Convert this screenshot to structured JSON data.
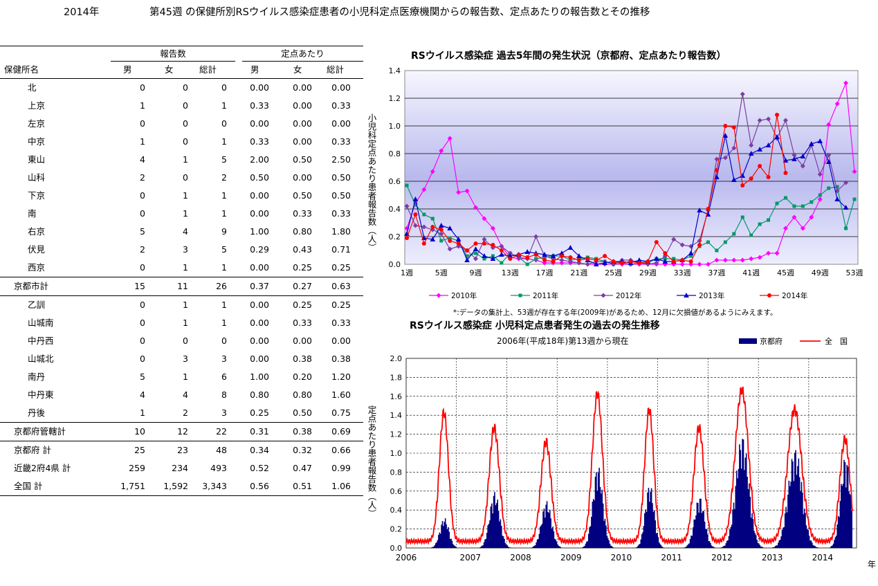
{
  "header": {
    "year": "2014年",
    "title": "第45週 の保健所別RSウイルス感染症患者の小児科定点医療機関からの報告数、定点あたりの報告数とその推移"
  },
  "table": {
    "group_report": "報告数",
    "group_per": "定点あたり",
    "col_name": "保健所名",
    "col_male": "男",
    "col_female": "女",
    "col_total": "総計",
    "rows": [
      {
        "name": "北",
        "m": "0",
        "f": "0",
        "t": "0",
        "pm": "0.00",
        "pf": "0.00",
        "pt": "0.00",
        "tot": false,
        "sep": false
      },
      {
        "name": "上京",
        "m": "1",
        "f": "0",
        "t": "1",
        "pm": "0.33",
        "pf": "0.00",
        "pt": "0.33",
        "tot": false,
        "sep": false
      },
      {
        "name": "左京",
        "m": "0",
        "f": "0",
        "t": "0",
        "pm": "0.00",
        "pf": "0.00",
        "pt": "0.00",
        "tot": false,
        "sep": false
      },
      {
        "name": "中京",
        "m": "1",
        "f": "0",
        "t": "1",
        "pm": "0.33",
        "pf": "0.00",
        "pt": "0.33",
        "tot": false,
        "sep": false
      },
      {
        "name": "東山",
        "m": "4",
        "f": "1",
        "t": "5",
        "pm": "2.00",
        "pf": "0.50",
        "pt": "2.50",
        "tot": false,
        "sep": false
      },
      {
        "name": "山科",
        "m": "2",
        "f": "0",
        "t": "2",
        "pm": "0.50",
        "pf": "0.00",
        "pt": "0.50",
        "tot": false,
        "sep": false
      },
      {
        "name": "下京",
        "m": "0",
        "f": "1",
        "t": "1",
        "pm": "0.00",
        "pf": "0.50",
        "pt": "0.50",
        "tot": false,
        "sep": false
      },
      {
        "name": "南",
        "m": "0",
        "f": "1",
        "t": "1",
        "pm": "0.00",
        "pf": "0.33",
        "pt": "0.33",
        "tot": false,
        "sep": false
      },
      {
        "name": "右京",
        "m": "5",
        "f": "4",
        "t": "9",
        "pm": "1.00",
        "pf": "0.80",
        "pt": "1.80",
        "tot": false,
        "sep": false
      },
      {
        "name": "伏見",
        "m": "2",
        "f": "3",
        "t": "5",
        "pm": "0.29",
        "pf": "0.43",
        "pt": "0.71",
        "tot": false,
        "sep": false
      },
      {
        "name": "西京",
        "m": "0",
        "f": "1",
        "t": "1",
        "pm": "0.00",
        "pf": "0.25",
        "pt": "0.25",
        "tot": false,
        "sep": true
      },
      {
        "name": "京都市計",
        "m": "15",
        "f": "11",
        "t": "26",
        "pm": "0.37",
        "pf": "0.27",
        "pt": "0.63",
        "tot": true,
        "sep": true
      },
      {
        "name": "乙訓",
        "m": "0",
        "f": "1",
        "t": "1",
        "pm": "0.00",
        "pf": "0.25",
        "pt": "0.25",
        "tot": false,
        "sep": false
      },
      {
        "name": "山城南",
        "m": "0",
        "f": "1",
        "t": "1",
        "pm": "0.00",
        "pf": "0.33",
        "pt": "0.33",
        "tot": false,
        "sep": false
      },
      {
        "name": "中丹西",
        "m": "0",
        "f": "0",
        "t": "0",
        "pm": "0.00",
        "pf": "0.00",
        "pt": "0.00",
        "tot": false,
        "sep": false
      },
      {
        "name": "山城北",
        "m": "0",
        "f": "3",
        "t": "3",
        "pm": "0.00",
        "pf": "0.38",
        "pt": "0.38",
        "tot": false,
        "sep": false
      },
      {
        "name": "南丹",
        "m": "5",
        "f": "1",
        "t": "6",
        "pm": "1.00",
        "pf": "0.20",
        "pt": "1.20",
        "tot": false,
        "sep": false
      },
      {
        "name": "中丹東",
        "m": "4",
        "f": "4",
        "t": "8",
        "pm": "0.80",
        "pf": "0.80",
        "pt": "1.60",
        "tot": false,
        "sep": false
      },
      {
        "name": "丹後",
        "m": "1",
        "f": "2",
        "t": "3",
        "pm": "0.25",
        "pf": "0.50",
        "pt": "0.75",
        "tot": false,
        "sep": true
      },
      {
        "name": "京都府管轄計",
        "m": "10",
        "f": "12",
        "t": "22",
        "pm": "0.31",
        "pf": "0.38",
        "pt": "0.69",
        "tot": true,
        "sep": true
      },
      {
        "name": "京都府 計",
        "m": "25",
        "f": "23",
        "t": "48",
        "pm": "0.34",
        "pf": "0.32",
        "pt": "0.66",
        "tot": true,
        "sep": false
      },
      {
        "name": "近畿2府4県 計",
        "m": "259",
        "f": "234",
        "t": "493",
        "pm": "0.52",
        "pf": "0.47",
        "pt": "0.99",
        "tot": true,
        "sep": false
      },
      {
        "name": "全国 計",
        "m": "1,751",
        "f": "1,592",
        "t": "3,343",
        "pm": "0.56",
        "pf": "0.51",
        "pt": "1.06",
        "tot": true,
        "sep": true
      }
    ]
  },
  "chart_data": [
    {
      "type": "line",
      "title": "RSウイルス感染症 過去5年間の発生状況（京都府、定点あたり報告数）",
      "ylabel": "小児科定点あたり患者報告数（人）",
      "ylim": [
        0,
        1.4
      ],
      "yticks": [
        "0.0",
        "0.2",
        "0.4",
        "0.6",
        "0.8",
        "1.0",
        "1.2",
        "1.4"
      ],
      "xticks": [
        "1週",
        "5週",
        "9週",
        "13週",
        "17週",
        "21週",
        "25週",
        "29週",
        "33週",
        "37週",
        "41週",
        "45週",
        "49週",
        "53週"
      ],
      "note": "*:データの集計上、53週が存在する年(2009年)があるため、12月に欠損値があるようにみえます。",
      "series": [
        {
          "name": "2010年",
          "color": "#ff00ff",
          "marker": "diamond",
          "values": [
            0.26,
            0.44,
            0.54,
            0.67,
            0.82,
            0.91,
            0.52,
            0.53,
            0.41,
            0.33,
            0.26,
            0.13,
            0.05,
            0.04,
            0.04,
            0.03,
            0.01,
            0.01,
            0.01,
            0.01,
            0.01,
            0.0,
            0.0,
            0.0,
            0.0,
            0.0,
            0.0,
            0.0,
            0.0,
            0.0,
            0.0,
            0.0,
            0.0,
            0.0,
            0.0,
            0.0,
            0.03,
            0.03,
            0.03,
            0.03,
            0.04,
            0.05,
            0.08,
            0.08,
            0.26,
            0.34,
            0.26,
            0.34,
            0.47,
            1.01,
            1.16,
            1.31,
            0.67
          ]
        },
        {
          "name": "2011年",
          "color": "#009966",
          "marker": "square",
          "values": [
            0.57,
            0.43,
            0.36,
            0.33,
            0.17,
            0.19,
            0.17,
            0.06,
            0.08,
            0.04,
            0.06,
            0.01,
            0.08,
            0.05,
            0.0,
            0.04,
            0.05,
            0.06,
            0.06,
            0.03,
            0.04,
            0.05,
            0.04,
            0.02,
            0.0,
            0.01,
            0.0,
            0.01,
            0.01,
            0.04,
            0.04,
            0.04,
            0.03,
            0.06,
            0.13,
            0.16,
            0.1,
            0.16,
            0.22,
            0.34,
            0.21,
            0.29,
            0.32,
            0.44,
            0.48,
            0.42,
            0.42,
            0.45,
            0.5,
            0.55,
            0.56,
            0.26,
            0.47
          ]
        },
        {
          "name": "2012年",
          "color": "#7b3f9e",
          "marker": "diamond",
          "values": [
            0.42,
            0.28,
            0.27,
            0.25,
            0.22,
            0.11,
            0.13,
            0.1,
            0.04,
            0.18,
            0.12,
            0.13,
            0.08,
            0.05,
            0.04,
            0.2,
            0.06,
            0.04,
            0.03,
            0.02,
            0.01,
            0.0,
            0.02,
            0.02,
            0.0,
            0.03,
            0.03,
            0.01,
            0.0,
            0.01,
            0.06,
            0.18,
            0.14,
            0.13,
            0.17,
            0.39,
            0.76,
            0.77,
            0.84,
            1.23,
            0.86,
            1.04,
            1.05,
            0.91,
            1.04,
            0.79,
            0.71,
            0.86,
            0.65,
            0.79,
            0.53,
            0.59,
            null
          ]
        },
        {
          "name": "2013年",
          "color": "#0000cc",
          "marker": "triangle",
          "values": [
            0.22,
            0.47,
            0.19,
            0.18,
            0.28,
            0.26,
            0.18,
            0.03,
            0.11,
            0.06,
            0.04,
            0.07,
            0.06,
            0.07,
            0.09,
            0.08,
            0.07,
            0.06,
            0.08,
            0.12,
            0.06,
            0.03,
            0.0,
            0.01,
            0.02,
            0.02,
            0.01,
            0.03,
            0.02,
            0.04,
            0.02,
            0.02,
            0.03,
            0.08,
            0.39,
            0.36,
            0.63,
            0.93,
            0.61,
            0.64,
            0.8,
            0.83,
            0.86,
            0.92,
            0.75,
            0.76,
            0.78,
            0.87,
            0.89,
            0.74,
            0.47,
            0.41,
            null
          ]
        },
        {
          "name": "2014年",
          "color": "#ff0000",
          "marker": "circle",
          "values": [
            0.19,
            0.36,
            0.15,
            0.27,
            0.25,
            0.17,
            0.15,
            0.1,
            0.15,
            0.15,
            0.14,
            0.1,
            0.04,
            0.07,
            0.05,
            0.07,
            0.03,
            0.02,
            0.06,
            0.05,
            0.03,
            0.04,
            0.03,
            0.06,
            0.02,
            0.01,
            0.02,
            0.01,
            0.02,
            0.16,
            0.08,
            0.02,
            0.03,
            0.02,
            0.14,
            0.4,
            0.68,
            1.0,
            0.99,
            0.57,
            0.62,
            0.71,
            0.63,
            1.08,
            0.66,
            null,
            null,
            null,
            null,
            null,
            null,
            null,
            null
          ]
        }
      ]
    },
    {
      "type": "area",
      "title": "RSウイルス感染症 小児科定点患者発生の過去の発生推移",
      "subtitle": "2006年(平成18年)第13週から現在",
      "ylabel": "定点あたり患者報告数（人）",
      "xlabel": "年",
      "ylim": [
        0,
        2.0
      ],
      "yticks": [
        "0.0",
        "0.2",
        "0.4",
        "0.6",
        "0.8",
        "1.0",
        "1.2",
        "1.4",
        "1.6",
        "1.8",
        "2.0"
      ],
      "xticks": [
        "2006",
        "2007",
        "2008",
        "2009",
        "2010",
        "2011",
        "2012",
        "2013",
        "2014"
      ],
      "legend": [
        {
          "name": "京都府",
          "color": "#000080",
          "kind": "bar"
        },
        {
          "name": "全　国",
          "color": "#ff0000",
          "kind": "line"
        }
      ],
      "peaks": [
        {
          "year": 2006.75,
          "nat": 1.36,
          "kyo": 0.32,
          "w": 0.09
        },
        {
          "year": 2007.75,
          "nat": 1.2,
          "kyo": 0.6,
          "w": 0.1
        },
        {
          "year": 2008.78,
          "nat": 1.05,
          "kyo": 0.5,
          "w": 0.1
        },
        {
          "year": 2009.8,
          "nat": 1.56,
          "kyo": 0.88,
          "w": 0.1
        },
        {
          "year": 2010.83,
          "nat": 1.39,
          "kyo": 0.68,
          "w": 0.09
        },
        {
          "year": 2011.82,
          "nat": 1.2,
          "kyo": 0.55,
          "w": 0.1
        },
        {
          "year": 2012.67,
          "nat": 1.6,
          "kyo": 1.2,
          "w": 0.13
        },
        {
          "year": 2013.72,
          "nat": 1.39,
          "kyo": 1.06,
          "w": 0.14
        },
        {
          "year": 2014.72,
          "nat": 1.08,
          "kyo": 0.98,
          "w": 0.1
        }
      ]
    }
  ]
}
